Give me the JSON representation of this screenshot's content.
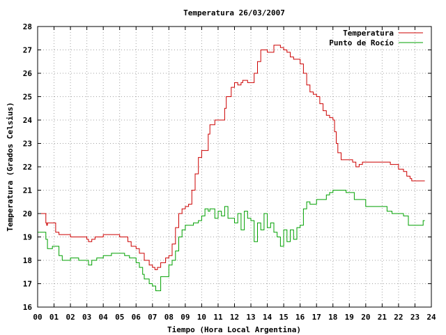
{
  "chart_data": {
    "type": "line",
    "title": "Temperatura 26/03/2007",
    "xlabel": "Tiempo (Hora Local Argentina)",
    "ylabel": "Temperatura (Grados Celsius)",
    "xlim": [
      0,
      24
    ],
    "ylim": [
      16,
      28
    ],
    "xticks": [
      "00",
      "01",
      "02",
      "03",
      "04",
      "05",
      "06",
      "07",
      "08",
      "09",
      "10",
      "11",
      "12",
      "13",
      "14",
      "15",
      "16",
      "17",
      "18",
      "19",
      "20",
      "21",
      "22",
      "23",
      "24"
    ],
    "yticks": [
      "16",
      "17",
      "18",
      "19",
      "20",
      "21",
      "22",
      "23",
      "24",
      "25",
      "26",
      "27",
      "28"
    ],
    "grid": true,
    "legend_position": "top-right",
    "series": [
      {
        "name": "Temperatura",
        "color": "#cc0000",
        "x": [
          0,
          0.35,
          0.5,
          0.55,
          0.6,
          1.0,
          1.1,
          1.3,
          1.5,
          2.0,
          2.5,
          2.8,
          3.0,
          3.1,
          3.3,
          3.5,
          4.0,
          4.5,
          5.0,
          5.2,
          5.5,
          5.7,
          6.0,
          6.2,
          6.5,
          6.8,
          7.0,
          7.15,
          7.3,
          7.5,
          7.8,
          8.0,
          8.2,
          8.4,
          8.6,
          8.8,
          9.0,
          9.2,
          9.4,
          9.6,
          9.8,
          10.0,
          10.2,
          10.4,
          10.5,
          10.8,
          11.0,
          11.2,
          11.4,
          11.5,
          11.8,
          12.0,
          12.2,
          12.4,
          12.5,
          12.8,
          13.0,
          13.2,
          13.4,
          13.6,
          13.8,
          14.0,
          14.2,
          14.4,
          14.6,
          14.8,
          15.0,
          15.2,
          15.4,
          15.6,
          15.8,
          16.0,
          16.2,
          16.4,
          16.6,
          16.8,
          17.0,
          17.2,
          17.4,
          17.6,
          17.8,
          18.0,
          18.1,
          18.2,
          18.3,
          18.5,
          18.8,
          19.0,
          19.2,
          19.4,
          19.6,
          19.8,
          20.0,
          20.5,
          21.0,
          21.5,
          22.0,
          22.3,
          22.5,
          22.7,
          22.8,
          23.0,
          23.5,
          23.6
        ],
        "values": [
          20.0,
          20.0,
          19.6,
          19.5,
          19.6,
          19.6,
          19.2,
          19.1,
          19.1,
          19.0,
          19.0,
          19.0,
          18.9,
          18.8,
          18.9,
          19.0,
          19.1,
          19.1,
          19.0,
          19.0,
          18.8,
          18.6,
          18.5,
          18.3,
          18.0,
          17.8,
          17.7,
          17.6,
          17.7,
          17.9,
          18.1,
          18.2,
          18.7,
          19.4,
          20.0,
          20.2,
          20.3,
          20.4,
          21.0,
          21.7,
          22.4,
          22.7,
          22.7,
          23.4,
          23.8,
          24.0,
          24.0,
          24.0,
          24.5,
          25.0,
          25.4,
          25.6,
          25.5,
          25.6,
          25.7,
          25.6,
          25.6,
          26.0,
          26.5,
          27.0,
          27.0,
          26.9,
          26.9,
          27.2,
          27.2,
          27.1,
          27.0,
          26.9,
          26.7,
          26.6,
          26.6,
          26.4,
          26.0,
          25.5,
          25.2,
          25.1,
          25.0,
          24.7,
          24.4,
          24.2,
          24.1,
          24.0,
          23.5,
          23.0,
          22.6,
          22.3,
          22.3,
          22.3,
          22.2,
          22.0,
          22.1,
          22.2,
          22.2,
          22.2,
          22.2,
          22.1,
          21.9,
          21.8,
          21.6,
          21.5,
          21.4,
          21.4,
          21.4,
          21.4
        ]
      },
      {
        "name": "Punto de Rocío",
        "color": "#00a000",
        "x": [
          0,
          0.3,
          0.5,
          0.6,
          0.9,
          1.0,
          1.3,
          1.5,
          2.0,
          2.5,
          3.0,
          3.1,
          3.3,
          3.6,
          4.0,
          4.5,
          5.0,
          5.3,
          5.6,
          6.0,
          6.2,
          6.4,
          6.5,
          6.8,
          7.0,
          7.2,
          7.5,
          7.8,
          8.0,
          8.2,
          8.4,
          8.6,
          8.8,
          9.0,
          9.2,
          9.5,
          9.8,
          10.0,
          10.2,
          10.4,
          10.5,
          10.8,
          11.0,
          11.2,
          11.4,
          11.6,
          11.8,
          12.0,
          12.2,
          12.4,
          12.6,
          12.8,
          13.0,
          13.2,
          13.4,
          13.6,
          13.8,
          14.0,
          14.2,
          14.4,
          14.6,
          14.8,
          15.0,
          15.2,
          15.4,
          15.6,
          15.8,
          16.0,
          16.2,
          16.4,
          16.6,
          16.8,
          17.0,
          17.2,
          17.4,
          17.6,
          17.8,
          18.0,
          18.2,
          18.4,
          18.6,
          18.8,
          19.0,
          19.3,
          19.6,
          19.8,
          20.0,
          20.5,
          21.0,
          21.3,
          21.6,
          22.0,
          22.3,
          22.6,
          23.0,
          23.3,
          23.5,
          23.6
        ],
        "values": [
          19.2,
          19.2,
          18.9,
          18.5,
          18.6,
          18.6,
          18.2,
          18.0,
          18.1,
          18.0,
          18.0,
          17.8,
          18.0,
          18.1,
          18.2,
          18.3,
          18.3,
          18.2,
          18.1,
          17.9,
          17.7,
          17.4,
          17.2,
          17.0,
          16.9,
          16.7,
          17.3,
          17.3,
          17.8,
          18.0,
          18.4,
          19.0,
          19.3,
          19.5,
          19.5,
          19.6,
          19.7,
          19.9,
          20.2,
          20.1,
          20.2,
          19.8,
          20.1,
          19.9,
          20.3,
          19.8,
          19.8,
          19.6,
          20.0,
          19.3,
          20.1,
          19.8,
          19.7,
          18.8,
          19.6,
          19.3,
          20.0,
          19.4,
          19.6,
          19.2,
          19.0,
          18.6,
          19.3,
          18.8,
          19.3,
          18.9,
          19.4,
          19.5,
          20.2,
          20.5,
          20.4,
          20.4,
          20.6,
          20.6,
          20.6,
          20.8,
          20.9,
          21.0,
          21.0,
          21.0,
          21.0,
          20.9,
          20.9,
          20.6,
          20.6,
          20.6,
          20.3,
          20.3,
          20.3,
          20.1,
          20.0,
          20.0,
          19.9,
          19.5,
          19.5,
          19.5,
          19.7,
          19.7
        ]
      }
    ]
  }
}
